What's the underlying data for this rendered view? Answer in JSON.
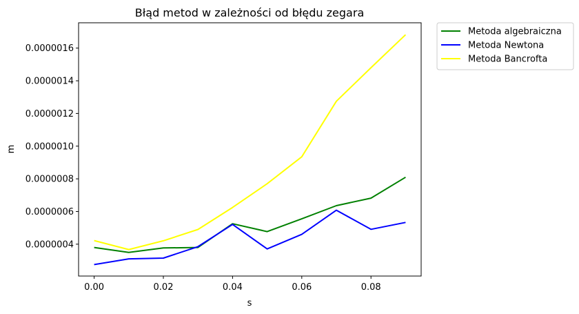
{
  "chart_data": {
    "type": "line",
    "title": "Błąd metod w zależności od błędu zegara",
    "xlabel": "s",
    "ylabel": "m",
    "xlim": [
      -0.0045,
      0.0945
    ],
    "ylim": [
      2.05e-07,
      1.755e-06
    ],
    "x": [
      0.0,
      0.01,
      0.02,
      0.03,
      0.04,
      0.05,
      0.06,
      0.07,
      0.08,
      0.09
    ],
    "xticks": [
      0.0,
      0.02,
      0.04,
      0.06,
      0.08
    ],
    "xtick_labels": [
      "0.00",
      "0.02",
      "0.04",
      "0.06",
      "0.08"
    ],
    "yticks": [
      4e-07,
      6e-07,
      8e-07,
      1e-06,
      1.2e-06,
      1.4e-06,
      1.6e-06
    ],
    "ytick_labels": [
      "0.0000004",
      "0.0000006",
      "0.0000008",
      "0.0000010",
      "0.0000012",
      "0.0000014",
      "0.0000016"
    ],
    "grid": false,
    "legend_position": "outside-top-right",
    "series": [
      {
        "name": "Metoda algebraiczna",
        "color": "#008000",
        "values": [
          3.8e-07,
          3.5e-07,
          3.77e-07,
          3.8e-07,
          5.25e-07,
          4.77e-07,
          5.55e-07,
          6.36e-07,
          6.82e-07,
          8.1e-07
        ]
      },
      {
        "name": "Metoda Newtona",
        "color": "#0000ff",
        "values": [
          2.75e-07,
          3.1e-07,
          3.15e-07,
          3.85e-07,
          5.21e-07,
          3.71e-07,
          4.6e-07,
          6.08e-07,
          4.91e-07,
          5.33e-07
        ]
      },
      {
        "name": "Metoda Bancrofta",
        "color": "#ffff00",
        "values": [
          4.22e-07,
          3.67e-07,
          4.21e-07,
          4.9e-07,
          6.25e-07,
          7.7e-07,
          9.35e-07,
          1.275e-06,
          1.48e-06,
          1.682e-06
        ]
      }
    ]
  }
}
